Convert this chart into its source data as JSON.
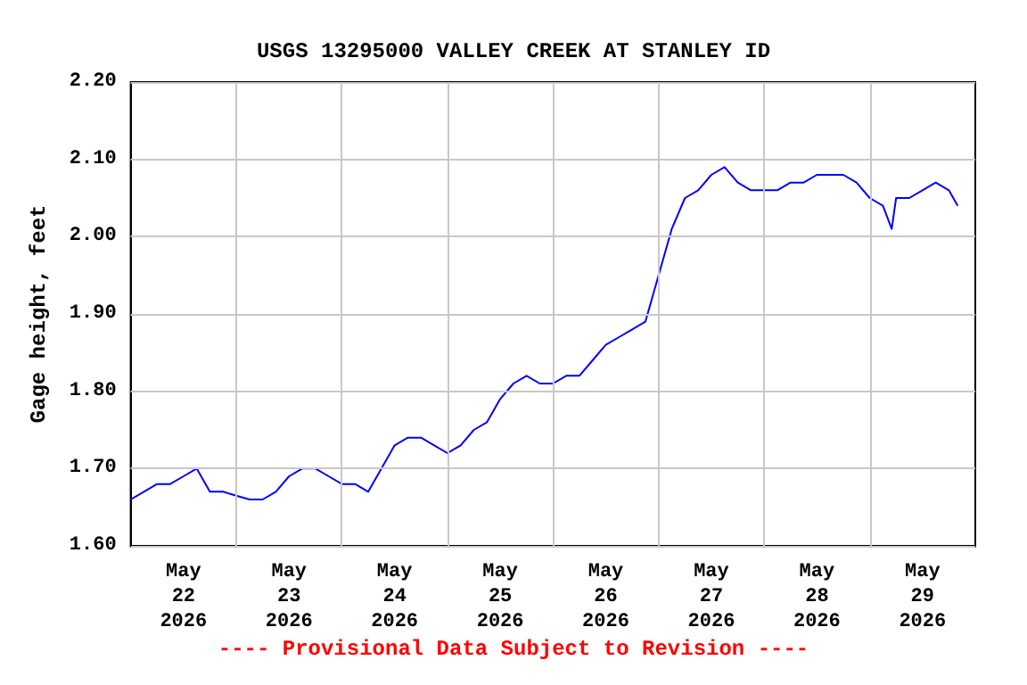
{
  "chart_data": {
    "type": "line",
    "title": "USGS 13295000 VALLEY CREEK AT STANLEY ID",
    "ylabel": "Gage height, feet",
    "annotations": [
      "---- Provisional Data Subject to Revision ----"
    ],
    "xlim": [
      "2026-05-22T00:00",
      "2026-05-30T00:00"
    ],
    "xticks": [
      {
        "value": "2026-05-22T12:00",
        "label": "May 22 2026"
      },
      {
        "value": "2026-05-23T00:00",
        "label": null
      },
      {
        "value": "2026-05-23T12:00",
        "label": "May 23 2026"
      },
      {
        "value": "2026-05-24T00:00",
        "label": null
      },
      {
        "value": "2026-05-24T12:00",
        "label": "May 24 2026"
      },
      {
        "value": "2026-05-25T00:00",
        "label": null
      },
      {
        "value": "2026-05-25T12:00",
        "label": "May 25 2026"
      },
      {
        "value": "2026-05-26T00:00",
        "label": null
      },
      {
        "value": "2026-05-26T12:00",
        "label": "May 26 2026"
      },
      {
        "value": "2026-05-27T00:00",
        "label": null
      },
      {
        "value": "2026-05-27T12:00",
        "label": "May 27 2026"
      },
      {
        "value": "2026-05-28T00:00",
        "label": null
      },
      {
        "value": "2026-05-28T12:00",
        "label": "May 28 2026"
      },
      {
        "value": "2026-05-29T00:00",
        "label": null
      },
      {
        "value": "2026-05-29T12:00",
        "label": "May 29 2026"
      }
    ],
    "ylim": [
      1.6,
      2.2
    ],
    "yticks": [
      {
        "value": 1.6,
        "label": "1.60"
      },
      {
        "value": 1.7,
        "label": "1.70"
      },
      {
        "value": 1.8,
        "label": "1.80"
      },
      {
        "value": 1.9,
        "label": "1.90"
      },
      {
        "value": 2.0,
        "label": "2.00"
      },
      {
        "value": 2.1,
        "label": "2.10"
      },
      {
        "value": 2.2,
        "label": "2.20"
      }
    ],
    "grid": true,
    "marker": "none",
    "line_style": "solid",
    "series": [
      {
        "color": "#0000ff",
        "x": [
          "2026-05-22T00:00",
          "2026-05-22T03:00",
          "2026-05-22T06:00",
          "2026-05-22T09:00",
          "2026-05-22T12:00",
          "2026-05-22T15:00",
          "2026-05-22T18:00",
          "2026-05-22T21:00",
          "2026-05-23T00:00",
          "2026-05-23T03:00",
          "2026-05-23T06:00",
          "2026-05-23T09:00",
          "2026-05-23T12:00",
          "2026-05-23T15:00",
          "2026-05-23T18:00",
          "2026-05-23T21:00",
          "2026-05-24T00:00",
          "2026-05-24T03:00",
          "2026-05-24T06:00",
          "2026-05-24T09:00",
          "2026-05-24T12:00",
          "2026-05-24T15:00",
          "2026-05-24T18:00",
          "2026-05-24T21:00",
          "2026-05-25T00:00",
          "2026-05-25T03:00",
          "2026-05-25T06:00",
          "2026-05-25T09:00",
          "2026-05-25T12:00",
          "2026-05-25T15:00",
          "2026-05-25T18:00",
          "2026-05-25T21:00",
          "2026-05-26T00:00",
          "2026-05-26T03:00",
          "2026-05-26T06:00",
          "2026-05-26T09:00",
          "2026-05-26T12:00",
          "2026-05-26T15:00",
          "2026-05-26T18:00",
          "2026-05-26T21:00",
          "2026-05-27T00:00",
          "2026-05-27T03:00",
          "2026-05-27T06:00",
          "2026-05-27T09:00",
          "2026-05-27T12:00",
          "2026-05-27T15:00",
          "2026-05-27T18:00",
          "2026-05-27T21:00",
          "2026-05-28T00:00",
          "2026-05-28T03:00",
          "2026-05-28T06:00",
          "2026-05-28T09:00",
          "2026-05-28T12:00",
          "2026-05-28T15:00",
          "2026-05-28T18:00",
          "2026-05-28T21:00",
          "2026-05-29T00:00",
          "2026-05-29T03:00",
          "2026-05-29T05:00",
          "2026-05-29T06:00",
          "2026-05-29T09:00",
          "2026-05-29T12:00",
          "2026-05-29T15:00",
          "2026-05-29T18:00",
          "2026-05-29T20:00"
        ],
        "values": [
          1.66,
          1.67,
          1.68,
          1.68,
          1.69,
          1.7,
          1.67,
          1.67,
          1.665,
          1.66,
          1.66,
          1.67,
          1.69,
          1.7,
          1.7,
          1.69,
          1.68,
          1.68,
          1.67,
          1.7,
          1.73,
          1.74,
          1.74,
          1.73,
          1.72,
          1.73,
          1.75,
          1.76,
          1.79,
          1.81,
          1.82,
          1.81,
          1.81,
          1.82,
          1.82,
          1.84,
          1.86,
          1.87,
          1.88,
          1.89,
          1.95,
          2.01,
          2.05,
          2.06,
          2.08,
          2.09,
          2.07,
          2.06,
          2.06,
          2.06,
          2.07,
          2.07,
          2.08,
          2.08,
          2.08,
          2.07,
          2.05,
          2.04,
          2.01,
          2.05,
          2.05,
          2.06,
          2.07,
          2.06,
          2.04
        ]
      }
    ]
  }
}
